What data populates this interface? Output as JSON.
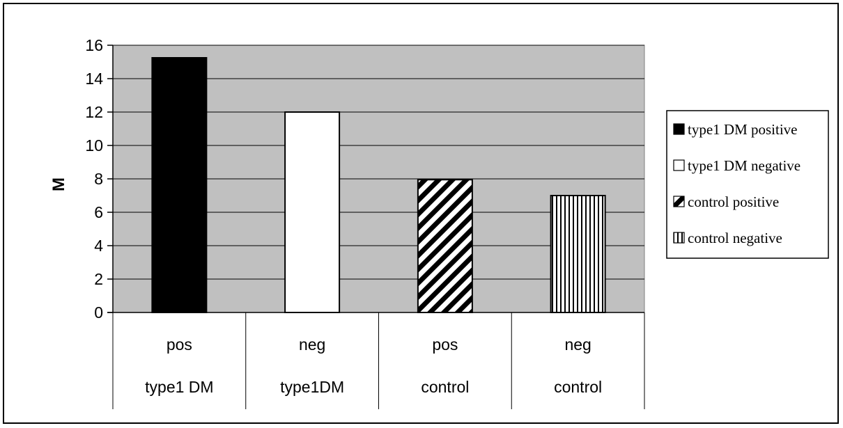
{
  "chart_data": {
    "type": "bar",
    "title": "",
    "ylabel": "M",
    "xlabel": "",
    "ylim": [
      0,
      16
    ],
    "yticks": [
      0,
      2,
      4,
      6,
      8,
      10,
      12,
      14,
      16
    ],
    "grid": true,
    "legend_position": "right",
    "categories": [
      {
        "line1": "pos",
        "line2": "type1 DM"
      },
      {
        "line1": "neg",
        "line2": "type1DM"
      },
      {
        "line1": "pos",
        "line2": "control"
      },
      {
        "line1": "neg",
        "line2": "control"
      }
    ],
    "values": [
      15.25,
      12,
      7.95,
      7
    ],
    "fills": [
      "solid-black",
      "white",
      "diagonal-stripes",
      "vertical-stripes"
    ],
    "legend": [
      "type1 DM positive",
      "type1 DM negative",
      "control positive",
      "control negative"
    ],
    "colors": {
      "plot_background": "#c0c0c0",
      "bar_outline": "#000000",
      "dark": "#000000",
      "light": "#ffffff"
    }
  }
}
